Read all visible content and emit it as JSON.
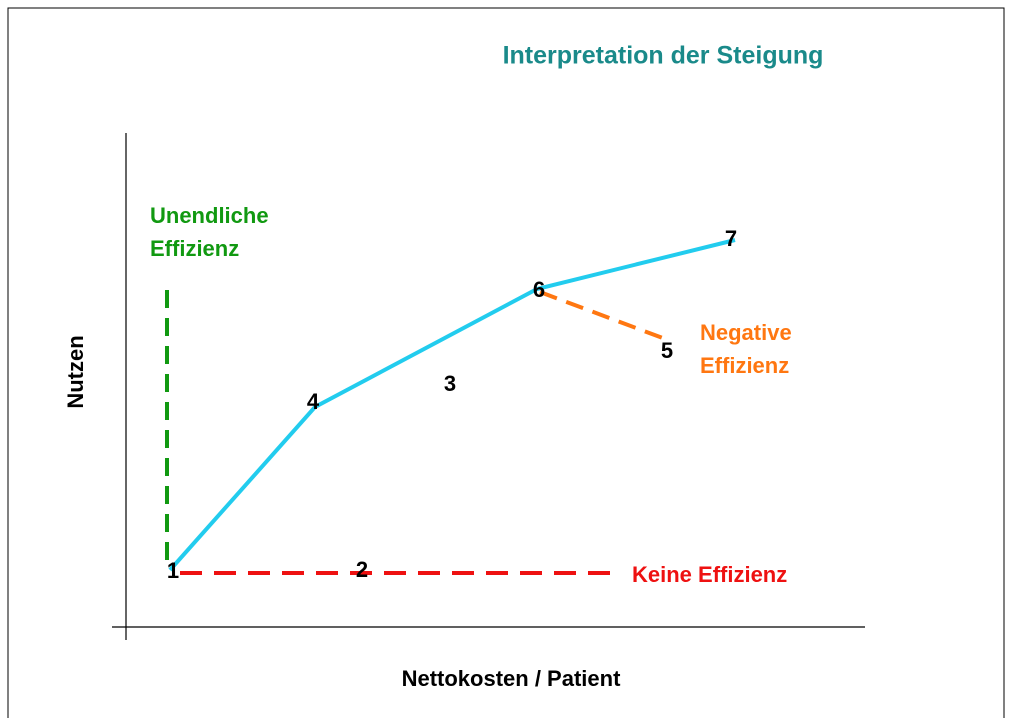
{
  "title": "Interpretation der Steigung",
  "y_axis_label": "Nutzen",
  "x_axis_label": "Nettokosten / Patient",
  "nodes": [
    {
      "label": "1"
    },
    {
      "label": "2"
    },
    {
      "label": "3"
    },
    {
      "label": "4"
    },
    {
      "label": "5"
    },
    {
      "label": "6"
    },
    {
      "label": "7"
    }
  ],
  "annotations": {
    "infinite": [
      "Unendliche",
      "Effizienz"
    ],
    "negative": [
      "Negative",
      "Effizienz"
    ],
    "none": [
      "Keine Effizienz"
    ]
  }
}
